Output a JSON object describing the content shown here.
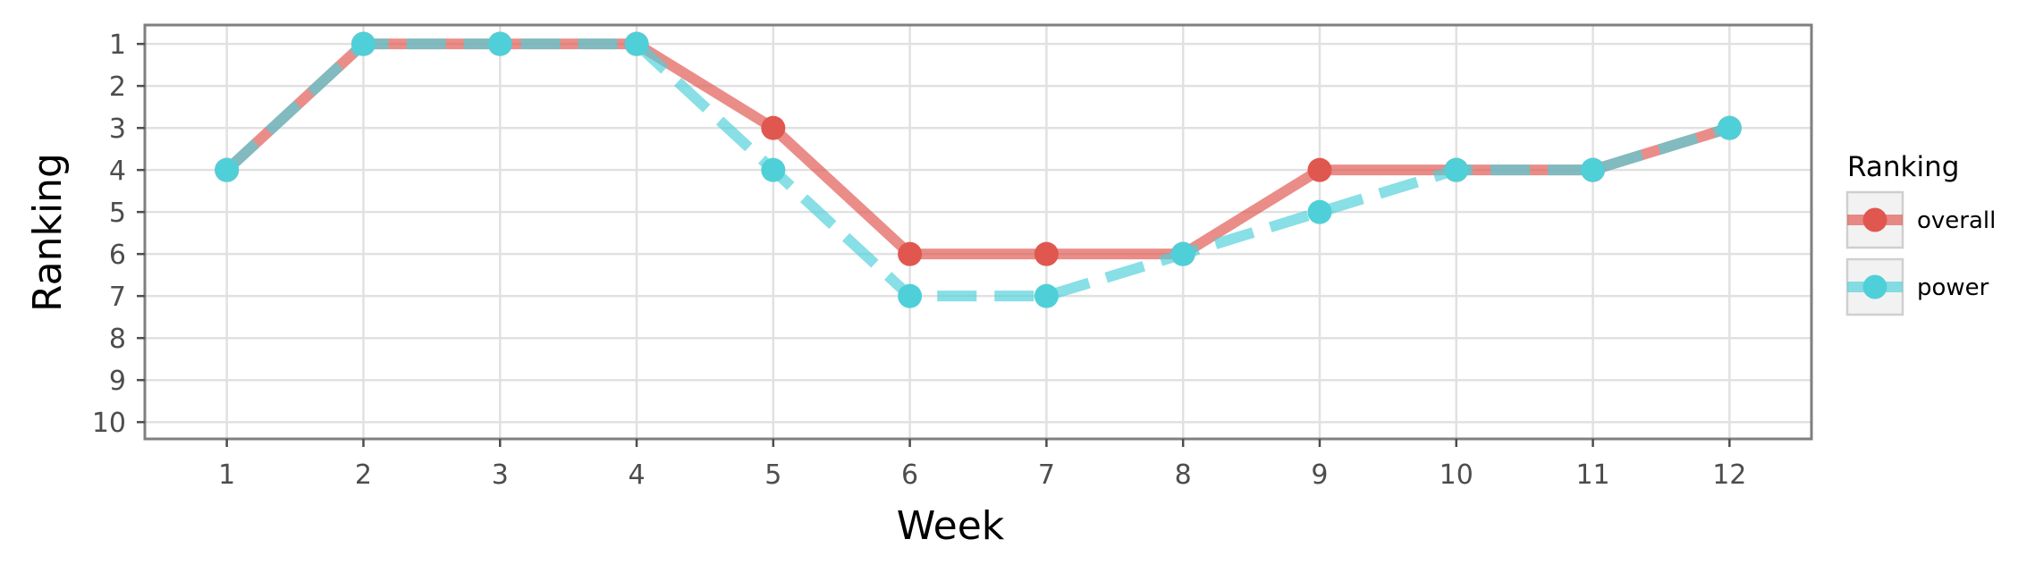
{
  "chart_data": {
    "type": "line",
    "xlabel": "Week",
    "ylabel": "Ranking",
    "x": [
      1,
      2,
      3,
      4,
      5,
      6,
      7,
      8,
      9,
      10,
      11,
      12
    ],
    "xlim": [
      0.4,
      12.6
    ],
    "ylim": [
      10.4,
      0.55
    ],
    "y_reversed": true,
    "x_ticks": [
      "1",
      "2",
      "3",
      "4",
      "5",
      "6",
      "7",
      "8",
      "9",
      "10",
      "11",
      "12"
    ],
    "y_ticks": [
      "1",
      "2",
      "3",
      "4",
      "5",
      "6",
      "7",
      "8",
      "9",
      "10"
    ],
    "grid": true,
    "legend": {
      "title": "Ranking",
      "position": "right"
    },
    "series": [
      {
        "name": "overall",
        "color": "#e0574f",
        "line_style": "solid",
        "values": [
          4,
          1,
          1,
          1,
          3,
          6,
          6,
          6,
          4,
          4,
          4,
          3
        ]
      },
      {
        "name": "power",
        "color": "#4fd0d8",
        "line_style": "dashed",
        "values": [
          4,
          1,
          1,
          1,
          4,
          7,
          7,
          6,
          5,
          4,
          4,
          3
        ]
      }
    ]
  }
}
